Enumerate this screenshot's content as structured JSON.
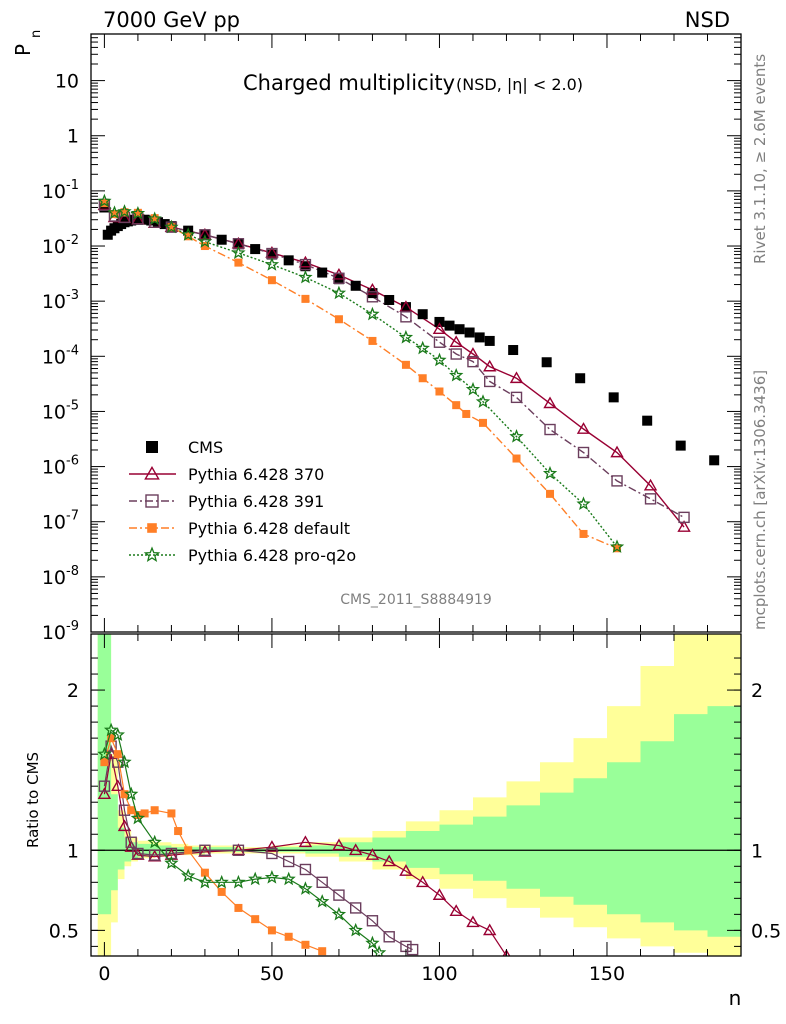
{
  "header": {
    "left": "7000 GeV pp",
    "right": "NSD"
  },
  "chart_data": [
    {
      "type": "scatter",
      "title": "Charged multiplicity",
      "title_suffix": "(NSD, |η| < 2.0)",
      "ylabel": "P",
      "ylabel_sub": "n",
      "xlim": [
        -4,
        190
      ],
      "ylim": [
        1e-09,
        70
      ],
      "yscale": "log",
      "y_tick_labels": [
        "10",
        "1",
        "10^-1",
        "10^-2",
        "10^-3",
        "10^-4",
        "10^-5",
        "10^-6",
        "10^-7",
        "10^-8",
        "10^-9"
      ],
      "legend_position": "bottom-left",
      "analysis_label": "CMS_2011_S8884919",
      "side_label_top": "Rivet 3.1.10, ≥ 2.6M events",
      "side_label_bottom": "mcplots.cern.ch [arXiv:1306.3436]",
      "series": [
        {
          "name": "CMS",
          "color": "#000000",
          "marker": "square-filled",
          "x": [
            0,
            1,
            2,
            3,
            4,
            5,
            6,
            7,
            8,
            9,
            10,
            12,
            14,
            16,
            18,
            20,
            25,
            30,
            35,
            40,
            45,
            50,
            55,
            60,
            65,
            70,
            75,
            80,
            85,
            90,
            95,
            100,
            103,
            106,
            109,
            112,
            115,
            122,
            132,
            142,
            152,
            162,
            172,
            182
          ],
          "y": [
            0.05,
            0.016,
            0.019,
            0.021,
            0.023,
            0.025,
            0.027,
            0.028,
            0.029,
            0.03,
            0.03,
            0.03,
            0.029,
            0.027,
            0.025,
            0.023,
            0.019,
            0.016,
            0.013,
            0.011,
            0.0088,
            0.007,
            0.0055,
            0.0043,
            0.0033,
            0.0025,
            0.0019,
            0.0014,
            0.00105,
            0.00078,
            0.00058,
            0.00042,
            0.00036,
            0.00031,
            0.00027,
            0.00022,
            0.00019,
            0.00013,
            7.8e-05,
            4e-05,
            1.8e-05,
            6.8e-06,
            2.4e-06,
            1.3e-06
          ]
        },
        {
          "name": "Pythia 6.428 370",
          "color": "#990033",
          "marker": "triangle-open",
          "line": "solid",
          "x": [
            0,
            3,
            6,
            10,
            15,
            20,
            30,
            40,
            50,
            60,
            70,
            80,
            90,
            100,
            105,
            110,
            115,
            123,
            133,
            143,
            153,
            163,
            173
          ],
          "y": [
            0.055,
            0.033,
            0.032,
            0.03,
            0.026,
            0.022,
            0.016,
            0.011,
            0.0075,
            0.005,
            0.003,
            0.0016,
            0.00078,
            0.00031,
            0.00018,
            0.00011,
            6.5e-05,
            4e-05,
            1.4e-05,
            4.8e-06,
            1.8e-06,
            4.5e-07,
            8e-08
          ]
        },
        {
          "name": "Pythia 6.428 391",
          "color": "#6b3e5d",
          "marker": "square-open",
          "line": "dashdot",
          "x": [
            0,
            3,
            6,
            10,
            15,
            20,
            30,
            40,
            50,
            60,
            70,
            80,
            90,
            100,
            105,
            110,
            115,
            123,
            133,
            143,
            153,
            163,
            173
          ],
          "y": [
            0.055,
            0.035,
            0.033,
            0.031,
            0.027,
            0.022,
            0.016,
            0.011,
            0.0073,
            0.0046,
            0.0026,
            0.0012,
            0.00052,
            0.00018,
            0.00011,
            8e-05,
            3.5e-05,
            1.8e-05,
            4.7e-06,
            1.8e-06,
            5.5e-07,
            2.6e-07,
            1.2e-07
          ]
        },
        {
          "name": "Pythia 6.428 default",
          "color": "#ff7f27",
          "marker": "square-filled-small",
          "line": "dashdot",
          "x": [
            0,
            3,
            6,
            10,
            15,
            20,
            25,
            30,
            40,
            50,
            60,
            70,
            80,
            90,
            95,
            100,
            105,
            108,
            113,
            123,
            133,
            143,
            153
          ],
          "y": [
            0.06,
            0.038,
            0.041,
            0.04,
            0.032,
            0.022,
            0.015,
            0.01,
            0.005,
            0.0024,
            0.0011,
            0.00047,
            0.00019,
            7e-05,
            4e-05,
            2.3e-05,
            1.3e-05,
            9e-06,
            6.2e-06,
            1.4e-06,
            3.2e-07,
            6e-08,
            3.3e-08
          ]
        },
        {
          "name": "Pythia 6.428 pro-q2o",
          "color": "#1a7a1a",
          "marker": "star-open",
          "line": "dotted",
          "x": [
            0,
            3,
            6,
            10,
            15,
            20,
            25,
            30,
            40,
            50,
            60,
            70,
            80,
            90,
            95,
            100,
            105,
            110,
            113,
            123,
            133,
            143,
            153
          ],
          "y": [
            0.065,
            0.04,
            0.042,
            0.039,
            0.031,
            0.022,
            0.016,
            0.012,
            0.0075,
            0.0046,
            0.0027,
            0.0014,
            0.00058,
            0.00022,
            0.00014,
            8.5e-05,
            4.5e-05,
            2.5e-05,
            1.5e-05,
            3.5e-06,
            7.5e-07,
            2.1e-07,
            3.5e-08
          ]
        }
      ]
    },
    {
      "type": "line",
      "ylabel": "Ratio to CMS",
      "xlabel": "n",
      "xlim": [
        -4,
        190
      ],
      "ylim": [
        0.34,
        2.35
      ],
      "x_ticks": [
        0,
        50,
        100,
        150
      ],
      "y_ticks": [
        0.5,
        1,
        2
      ],
      "band_colors": {
        "outer": "#ffff99",
        "inner": "#99ff99"
      },
      "bands": {
        "x_edges": [
          -2,
          0,
          2,
          4,
          6,
          8,
          10,
          15,
          20,
          25,
          30,
          40,
          50,
          60,
          70,
          80,
          90,
          100,
          110,
          120,
          130,
          140,
          150,
          160,
          170,
          180,
          190
        ],
        "outer_lo": [
          0.34,
          0.34,
          0.55,
          0.82,
          0.9,
          0.93,
          0.95,
          0.96,
          0.97,
          0.97,
          0.98,
          0.98,
          0.98,
          0.96,
          0.93,
          0.88,
          0.82,
          0.76,
          0.7,
          0.64,
          0.58,
          0.52,
          0.45,
          0.4,
          0.36,
          0.34
        ],
        "outer_hi": [
          2.35,
          2.35,
          1.6,
          1.25,
          1.12,
          1.08,
          1.06,
          1.05,
          1.04,
          1.03,
          1.03,
          1.02,
          1.03,
          1.05,
          1.08,
          1.12,
          1.18,
          1.25,
          1.33,
          1.43,
          1.55,
          1.7,
          1.9,
          2.15,
          2.35,
          2.35
        ],
        "inner_lo": [
          0.6,
          0.6,
          0.75,
          0.88,
          0.93,
          0.95,
          0.96,
          0.97,
          0.98,
          0.98,
          0.99,
          0.99,
          0.99,
          0.98,
          0.96,
          0.93,
          0.89,
          0.85,
          0.81,
          0.76,
          0.71,
          0.66,
          0.6,
          0.55,
          0.5,
          0.46
        ],
        "inner_hi": [
          2.35,
          2.35,
          1.35,
          1.14,
          1.08,
          1.05,
          1.04,
          1.03,
          1.02,
          1.02,
          1.02,
          1.01,
          1.02,
          1.03,
          1.05,
          1.08,
          1.12,
          1.16,
          1.21,
          1.28,
          1.36,
          1.45,
          1.55,
          1.68,
          1.85,
          1.9
        ]
      },
      "series": [
        {
          "name": "Pythia 6.428 370",
          "color": "#990033",
          "marker": "triangle-open",
          "x": [
            0,
            2,
            4,
            6,
            8,
            10,
            15,
            20,
            30,
            40,
            50,
            60,
            70,
            75,
            80,
            85,
            90,
            95,
            100,
            105,
            110,
            115,
            120
          ],
          "y": [
            1.35,
            1.6,
            1.4,
            1.15,
            1.02,
            0.97,
            0.96,
            0.97,
            0.99,
            1.0,
            1.02,
            1.05,
            1.03,
            1.0,
            0.97,
            0.93,
            0.87,
            0.8,
            0.72,
            0.62,
            0.55,
            0.5,
            0.34
          ]
        },
        {
          "name": "Pythia 6.428 391",
          "color": "#6b3e5d",
          "marker": "square-open",
          "x": [
            0,
            2,
            4,
            6,
            8,
            10,
            15,
            20,
            30,
            40,
            50,
            55,
            60,
            65,
            70,
            75,
            80,
            85,
            90,
            92
          ],
          "y": [
            1.4,
            1.65,
            1.55,
            1.25,
            1.05,
            0.98,
            0.97,
            0.98,
            1.0,
            1.0,
            0.98,
            0.93,
            0.88,
            0.8,
            0.72,
            0.64,
            0.56,
            0.46,
            0.4,
            0.38
          ]
        },
        {
          "name": "Pythia 6.428 default",
          "color": "#ff7f27",
          "marker": "square-filled-small",
          "x": [
            0,
            2,
            4,
            6,
            8,
            10,
            12,
            15,
            20,
            22,
            25,
            30,
            35,
            40,
            45,
            50,
            55,
            60,
            65
          ],
          "y": [
            1.55,
            1.7,
            1.6,
            1.35,
            1.25,
            1.22,
            1.23,
            1.25,
            1.23,
            1.12,
            1.0,
            0.86,
            0.74,
            0.64,
            0.57,
            0.5,
            0.46,
            0.41,
            0.37
          ]
        },
        {
          "name": "Pythia 6.428 pro-q2o",
          "color": "#1a7a1a",
          "marker": "star-open",
          "x": [
            0,
            2,
            4,
            6,
            8,
            10,
            15,
            20,
            25,
            30,
            35,
            40,
            45,
            50,
            55,
            60,
            65,
            70,
            75,
            80,
            82
          ],
          "y": [
            1.6,
            1.75,
            1.72,
            1.55,
            1.35,
            1.2,
            1.05,
            0.92,
            0.84,
            0.8,
            0.8,
            0.8,
            0.82,
            0.83,
            0.82,
            0.76,
            0.68,
            0.6,
            0.5,
            0.42,
            0.36
          ]
        }
      ]
    }
  ]
}
